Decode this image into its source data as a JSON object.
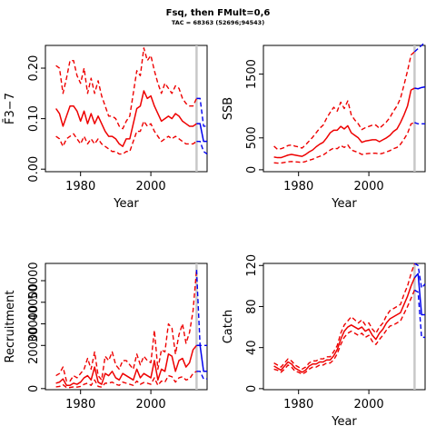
{
  "figure": {
    "title": "Fsq, then FMult=0,6",
    "subtitle": "TAC = 68363 (52696;94543)"
  },
  "colors": {
    "historic": "#ee0000",
    "forecast": "#0000ee",
    "marker": "#c8c8c8"
  },
  "chart_data": [
    {
      "type": "line",
      "name": "fbar",
      "xlabel": "Year",
      "ylabel": "F̄3−7",
      "xlim": [
        1970,
        2016
      ],
      "ylim": [
        -0.005,
        0.245
      ],
      "xticks": [
        1980,
        2000
      ],
      "yticks": [
        0.0,
        0.1,
        0.2
      ],
      "ytick_labels": [
        "0.00",
        "0.10",
        "0.20"
      ],
      "marker_year": 2013,
      "x": [
        1973,
        1974,
        1975,
        1976,
        1977,
        1978,
        1979,
        1980,
        1981,
        1982,
        1983,
        1984,
        1985,
        1986,
        1987,
        1988,
        1989,
        1990,
        1991,
        1992,
        1993,
        1994,
        1995,
        1996,
        1997,
        1998,
        1999,
        2000,
        2001,
        2002,
        2003,
        2004,
        2005,
        2006,
        2007,
        2008,
        2009,
        2010,
        2011,
        2012,
        2013
      ],
      "median": [
        0.12,
        0.11,
        0.085,
        0.105,
        0.125,
        0.125,
        0.115,
        0.095,
        0.115,
        0.09,
        0.11,
        0.09,
        0.105,
        0.09,
        0.075,
        0.065,
        0.065,
        0.06,
        0.05,
        0.045,
        0.06,
        0.06,
        0.09,
        0.12,
        0.125,
        0.155,
        0.14,
        0.145,
        0.125,
        0.11,
        0.095,
        0.1,
        0.105,
        0.1,
        0.11,
        0.105,
        0.095,
        0.09,
        0.085,
        0.085,
        0.09
      ],
      "upper": [
        0.205,
        0.2,
        0.15,
        0.18,
        0.215,
        0.215,
        0.185,
        0.17,
        0.2,
        0.15,
        0.18,
        0.15,
        0.175,
        0.145,
        0.125,
        0.105,
        0.105,
        0.1,
        0.085,
        0.08,
        0.095,
        0.105,
        0.15,
        0.195,
        0.185,
        0.24,
        0.215,
        0.225,
        0.195,
        0.17,
        0.15,
        0.17,
        0.16,
        0.15,
        0.165,
        0.16,
        0.14,
        0.13,
        0.125,
        0.125,
        0.14
      ],
      "lower": [
        0.065,
        0.06,
        0.045,
        0.06,
        0.065,
        0.07,
        0.06,
        0.05,
        0.065,
        0.05,
        0.06,
        0.05,
        0.06,
        0.05,
        0.045,
        0.04,
        0.035,
        0.035,
        0.03,
        0.03,
        0.035,
        0.035,
        0.055,
        0.075,
        0.075,
        0.095,
        0.085,
        0.09,
        0.075,
        0.065,
        0.055,
        0.06,
        0.065,
        0.06,
        0.065,
        0.06,
        0.055,
        0.05,
        0.05,
        0.05,
        0.055
      ],
      "forecast": {
        "x": [
          2013,
          2014,
          2015,
          2016
        ],
        "median": [
          0.09,
          0.09,
          0.055,
          0.055
        ],
        "upper": [
          0.14,
          0.14,
          0.085,
          0.085
        ],
        "lower": [
          0.055,
          0.055,
          0.035,
          0.03
        ]
      }
    },
    {
      "type": "line",
      "name": "ssb",
      "xlabel": "Year",
      "ylabel": "SSB",
      "xlim": [
        1970,
        2016
      ],
      "ylim": [
        -30,
        1950
      ],
      "xticks": [
        1980,
        2000
      ],
      "yticks": [
        0,
        500,
        1500
      ],
      "ytick_labels": [
        "0",
        "500",
        "1500"
      ],
      "marker_year": 2013,
      "x": [
        1973,
        1974,
        1975,
        1976,
        1977,
        1978,
        1979,
        1980,
        1981,
        1982,
        1983,
        1984,
        1985,
        1986,
        1987,
        1988,
        1989,
        1990,
        1991,
        1992,
        1993,
        1994,
        1995,
        1996,
        1997,
        1998,
        1999,
        2000,
        2001,
        2002,
        2003,
        2004,
        2005,
        2006,
        2007,
        2008,
        2009,
        2010,
        2011,
        2012,
        2013
      ],
      "median": [
        200,
        190,
        190,
        210,
        230,
        240,
        230,
        220,
        210,
        240,
        280,
        310,
        360,
        400,
        430,
        500,
        580,
        620,
        620,
        680,
        640,
        690,
        580,
        540,
        500,
        430,
        450,
        460,
        470,
        470,
        440,
        470,
        500,
        540,
        600,
        640,
        740,
        860,
        1000,
        1250,
        1280
      ],
      "upper": [
        370,
        320,
        330,
        350,
        380,
        390,
        370,
        360,
        340,
        390,
        450,
        510,
        580,
        650,
        700,
        810,
        900,
        980,
        920,
        1060,
        960,
        1080,
        860,
        780,
        720,
        630,
        660,
        680,
        700,
        700,
        650,
        700,
        750,
        820,
        920,
        1000,
        1120,
        1330,
        1550,
        1800,
        1850
      ],
      "lower": [
        110,
        105,
        105,
        115,
        125,
        130,
        125,
        120,
        115,
        130,
        150,
        165,
        190,
        210,
        230,
        270,
        310,
        340,
        330,
        380,
        350,
        390,
        310,
        290,
        270,
        240,
        250,
        255,
        260,
        260,
        245,
        260,
        280,
        300,
        330,
        350,
        400,
        480,
        570,
        720,
        740
      ],
      "forecast": {
        "x": [
          2013,
          2014,
          2015,
          2016
        ],
        "median": [
          1280,
          1270,
          1290,
          1300
        ],
        "upper": [
          1850,
          1900,
          1950,
          2000
        ],
        "lower": [
          740,
          720,
          720,
          720
        ]
      }
    },
    {
      "type": "line",
      "name": "recruitment",
      "xlabel": "",
      "ylabel": "Recruitment",
      "xlim": [
        1970,
        2016
      ],
      "ylim": [
        -500,
        58000
      ],
      "xticks": [
        1980,
        2000
      ],
      "yticks": [
        0,
        20000,
        30000,
        40000,
        50000
      ],
      "ytick_labels": [
        "0",
        "20000",
        "30000",
        "40000",
        "50000"
      ],
      "marker_year": 2013,
      "x": [
        1973,
        1974,
        1975,
        1976,
        1977,
        1978,
        1979,
        1980,
        1981,
        1982,
        1983,
        1984,
        1985,
        1986,
        1987,
        1988,
        1989,
        1990,
        1991,
        1992,
        1993,
        1994,
        1995,
        1996,
        1997,
        1998,
        1999,
        2000,
        2001,
        2002,
        2003,
        2004,
        2005,
        2006,
        2007,
        2008,
        2009,
        2010,
        2011,
        2012,
        2013
      ],
      "median": [
        2500,
        3000,
        4500,
        1500,
        1500,
        2500,
        2000,
        3000,
        5000,
        6000,
        4000,
        10000,
        3000,
        2000,
        7000,
        6000,
        8000,
        5000,
        4000,
        7000,
        6000,
        5000,
        4000,
        9000,
        5000,
        7000,
        6000,
        5000,
        13000,
        4000,
        9000,
        8000,
        16000,
        15000,
        8000,
        13000,
        14000,
        10000,
        12000,
        18000,
        20000
      ],
      "upper": [
        6000,
        7000,
        10000,
        3500,
        3500,
        6000,
        5000,
        7000,
        9000,
        14000,
        9000,
        17000,
        6000,
        4000,
        15000,
        13000,
        17000,
        11000,
        9000,
        13000,
        13000,
        11000,
        9000,
        16000,
        11000,
        15000,
        13000,
        12000,
        27000,
        9000,
        18000,
        17000,
        30000,
        28000,
        16000,
        25000,
        30000,
        21000,
        26000,
        36000,
        55000
      ],
      "lower": [
        800,
        1000,
        1800,
        500,
        500,
        800,
        700,
        1000,
        2000,
        2500,
        1500,
        4000,
        1000,
        700,
        2500,
        2500,
        3000,
        2000,
        1500,
        3000,
        2500,
        2000,
        1500,
        3500,
        2000,
        2800,
        2500,
        2000,
        5000,
        1500,
        3500,
        3000,
        6000,
        5500,
        3000,
        5000,
        5500,
        4000,
        4500,
        7000,
        8000
      ],
      "forecast": {
        "x": [
          2013,
          2014,
          2015,
          2016
        ],
        "median": [
          20000,
          20000,
          8000,
          8000
        ],
        "upper": [
          55000,
          20000,
          20000,
          20000
        ],
        "lower": [
          8000,
          8000,
          4500,
          4500
        ]
      }
    },
    {
      "type": "line",
      "name": "catch",
      "xlabel": "Year",
      "ylabel": "Catch",
      "xlim": [
        1970,
        2016
      ],
      "ylim": [
        -1,
        122
      ],
      "xticks": [
        1980,
        2000
      ],
      "yticks": [
        0,
        40,
        80,
        120
      ],
      "ytick_labels": [
        "0",
        "40",
        "80",
        "120"
      ],
      "marker_year": 2013,
      "x": [
        1973,
        1974,
        1975,
        1976,
        1977,
        1978,
        1979,
        1980,
        1981,
        1982,
        1983,
        1984,
        1985,
        1986,
        1987,
        1988,
        1989,
        1990,
        1991,
        1992,
        1993,
        1994,
        1995,
        1996,
        1997,
        1998,
        1999,
        2000,
        2001,
        2002,
        2003,
        2004,
        2005,
        2006,
        2007,
        2008,
        2009,
        2010,
        2011,
        2012,
        2013
      ],
      "median": [
        22,
        20,
        18,
        22,
        26,
        24,
        20,
        18,
        16,
        18,
        22,
        24,
        24,
        26,
        26,
        28,
        28,
        32,
        38,
        48,
        56,
        60,
        62,
        60,
        58,
        60,
        56,
        58,
        52,
        48,
        54,
        58,
        64,
        68,
        70,
        72,
        74,
        82,
        90,
        100,
        108
      ],
      "upper": [
        25,
        23,
        21,
        25,
        29,
        27,
        23,
        21,
        19,
        21,
        25,
        27,
        27,
        29,
        29,
        31,
        31,
        36,
        42,
        54,
        62,
        66,
        70,
        67,
        64,
        67,
        62,
        64,
        58,
        54,
        60,
        64,
        71,
        76,
        78,
        80,
        82,
        92,
        100,
        112,
        122
      ],
      "lower": [
        19,
        18,
        16,
        19,
        23,
        21,
        17,
        16,
        14,
        16,
        19,
        21,
        21,
        23,
        23,
        25,
        25,
        28,
        34,
        43,
        50,
        54,
        56,
        54,
        52,
        54,
        50,
        52,
        46,
        43,
        48,
        52,
        57,
        61,
        62,
        64,
        66,
        73,
        80,
        88,
        96
      ],
      "forecast": {
        "x": [
          2013,
          2014,
          2015,
          2016
        ],
        "median": [
          108,
          112,
          72,
          72
        ],
        "upper": [
          122,
          120,
          98,
          102
        ],
        "lower": [
          96,
          94,
          50,
          50
        ]
      }
    }
  ]
}
